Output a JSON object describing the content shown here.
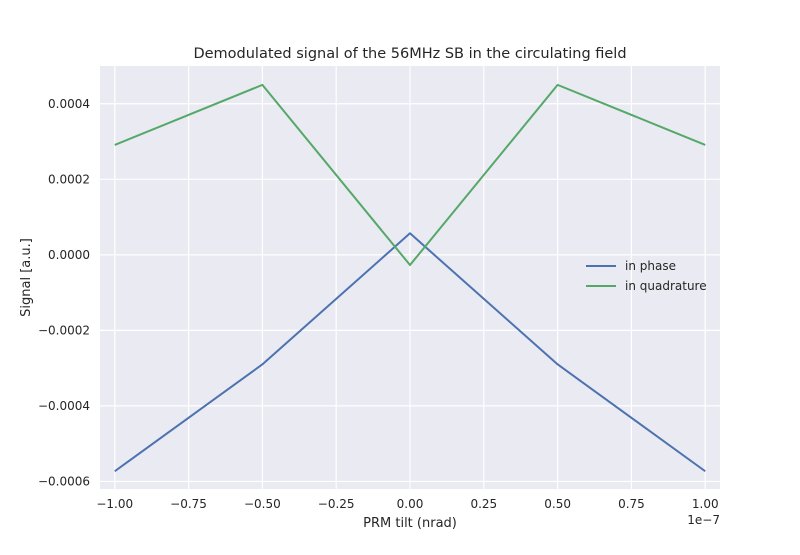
{
  "chart_data": {
    "type": "line",
    "title": "Demodulated signal of the 56MHz SB in the circulating field",
    "xlabel": "PRM tilt (nrad)",
    "ylabel": "Signal [a.u.]",
    "x_offset_text": "1e−7",
    "x": [
      -1e-07,
      -5e-08,
      0,
      5e-08,
      1e-07
    ],
    "xlim": [
      -1.05e-07,
      1.05e-07
    ],
    "ylim": [
      -0.00062,
      0.0005
    ],
    "x_ticks": [
      -1e-07,
      -7.5e-08,
      -5e-08,
      -2.5e-08,
      0,
      2.5e-08,
      5e-08,
      7.5e-08,
      1e-07
    ],
    "x_tick_labels": [
      "−1.00",
      "−0.75",
      "−0.50",
      "−0.25",
      "0.00",
      "0.25",
      "0.50",
      "0.75",
      "1.00"
    ],
    "y_ticks": [
      -0.0006,
      -0.0004,
      -0.0002,
      0.0,
      0.0002,
      0.0004
    ],
    "y_tick_labels": [
      "−0.0006",
      "−0.0004",
      "−0.0002",
      "0.0000",
      "0.0002",
      "0.0004"
    ],
    "grid": true,
    "legend_position": "center-right",
    "background": "#EAEAF2",
    "series": [
      {
        "name": "in phase",
        "color": "#4C72B0",
        "values": [
          -0.000573,
          -0.00029,
          5.7e-05,
          -0.00029,
          -0.000573
        ]
      },
      {
        "name": "in quadrature",
        "color": "#55A868",
        "values": [
          0.000291,
          0.00045,
          -2.7e-05,
          0.00045,
          0.000291
        ]
      }
    ]
  }
}
